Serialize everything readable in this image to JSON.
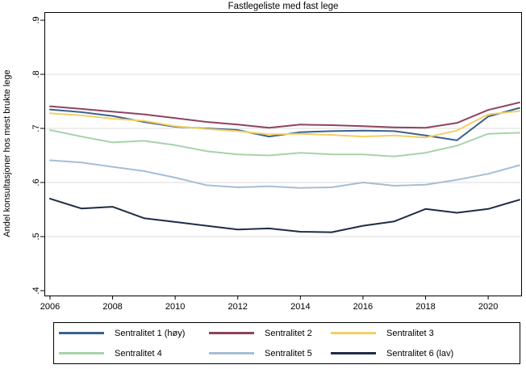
{
  "chart_data": {
    "type": "line",
    "title": "Fastlegeliste med fast lege",
    "xlabel": "",
    "ylabel": "Andel konsultasjoner hos mest brukte lege",
    "x": [
      2006,
      2007,
      2008,
      2009,
      2010,
      2011,
      2012,
      2013,
      2014,
      2015,
      2016,
      2017,
      2018,
      2019,
      2020,
      2021
    ],
    "xticks": [
      2006,
      2008,
      2010,
      2012,
      2014,
      2016,
      2018,
      2020
    ],
    "yticks": [
      0.4,
      0.5,
      0.6,
      0.7,
      0.8,
      0.9
    ],
    "ytick_labels": [
      ".4",
      ".5",
      ".6",
      ".7",
      ".8",
      ".9"
    ],
    "gridlines_at": [
      0.5,
      0.6,
      0.7,
      0.8
    ],
    "ylim": [
      0.391,
      0.915
    ],
    "xlim": [
      2005.82,
      2021.08
    ],
    "grid": "horizontal",
    "legend_position": "bottom",
    "colors": {
      "axis": "#000000",
      "grid": "#dedede",
      "background": "#ffffff"
    },
    "series": [
      {
        "name": "Sentralitet 1 (høy)",
        "color": "#3d6190",
        "values": [
          0.735,
          0.73,
          0.723,
          0.712,
          0.703,
          0.7,
          0.697,
          0.685,
          0.693,
          0.695,
          0.696,
          0.695,
          0.687,
          0.678,
          0.722,
          0.738
        ]
      },
      {
        "name": "Sentralitet 2",
        "color": "#8f4361",
        "values": [
          0.741,
          0.736,
          0.731,
          0.726,
          0.719,
          0.712,
          0.707,
          0.701,
          0.707,
          0.706,
          0.704,
          0.702,
          0.701,
          0.71,
          0.734,
          0.748
        ]
      },
      {
        "name": "Sentralitet 3",
        "color": "#f2d064",
        "values": [
          0.728,
          0.724,
          0.718,
          0.714,
          0.704,
          0.699,
          0.695,
          0.689,
          0.69,
          0.688,
          0.685,
          0.687,
          0.683,
          0.696,
          0.726,
          0.732
        ]
      },
      {
        "name": "Sentralitet 4",
        "color": "#a7d3a9",
        "values": [
          0.697,
          0.685,
          0.674,
          0.677,
          0.669,
          0.658,
          0.652,
          0.65,
          0.655,
          0.652,
          0.652,
          0.648,
          0.655,
          0.668,
          0.69,
          0.692
        ]
      },
      {
        "name": "Sentralitet 5",
        "color": "#a6bed4",
        "values": [
          0.641,
          0.637,
          0.629,
          0.621,
          0.609,
          0.595,
          0.591,
          0.593,
          0.59,
          0.591,
          0.6,
          0.594,
          0.596,
          0.605,
          0.616,
          0.632
        ]
      },
      {
        "name": "Sentralitet 6 (lav)",
        "color": "#1f2c45",
        "values": [
          0.57,
          0.552,
          0.555,
          0.534,
          0.527,
          0.52,
          0.513,
          0.515,
          0.509,
          0.508,
          0.52,
          0.528,
          0.551,
          0.544,
          0.551,
          0.568
        ]
      }
    ]
  }
}
